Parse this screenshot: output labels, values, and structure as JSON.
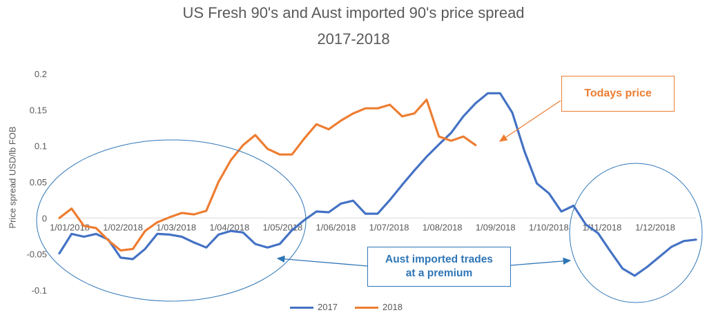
{
  "title": {
    "line1": "US Fresh 90's and Aust imported 90's price spread",
    "line2": "2017-2018"
  },
  "chart_data": {
    "type": "line",
    "title": "US Fresh 90's and Aust imported 90's price spread 2017-2018",
    "xlabel": "",
    "ylabel": "Price spread USD/lb FOB",
    "ylim": [
      -0.1,
      0.2
    ],
    "yticks": [
      -0.1,
      -0.05,
      0,
      0.05,
      0.1,
      0.15,
      0.2
    ],
    "ytick_labels": [
      "-0.1",
      "-0.05",
      "0",
      "0.05",
      "0.1",
      "0.15",
      "0.2"
    ],
    "xtick_labels": [
      "1/01/2018",
      "1/02/2018",
      "1/03/2018",
      "1/04/2018",
      "1/05/2018",
      "1/06/2018",
      "1/07/2018",
      "1/08/2018",
      "1/09/2018",
      "1/10/2018",
      "1/11/2018",
      "1/12/2018"
    ],
    "grid": false,
    "legend_position": "bottom",
    "series": [
      {
        "name": "2017",
        "color": "#4472C4",
        "values": [
          -0.049,
          -0.022,
          -0.026,
          -0.022,
          -0.03,
          -0.055,
          -0.057,
          -0.043,
          -0.022,
          -0.023,
          -0.026,
          -0.034,
          -0.041,
          -0.023,
          -0.018,
          -0.02,
          -0.036,
          -0.041,
          -0.036,
          -0.017,
          -0.003,
          0.009,
          0.008,
          0.02,
          0.024,
          0.006,
          0.006,
          0.025,
          0.046,
          0.066,
          0.085,
          0.102,
          0.118,
          0.141,
          0.159,
          0.173,
          0.173,
          0.146,
          0.092,
          0.048,
          0.034,
          0.009,
          0.017,
          -0.009,
          -0.021,
          -0.046,
          -0.07,
          -0.08,
          -0.068,
          -0.054,
          -0.04,
          -0.032,
          -0.03
        ]
      },
      {
        "name": "2018",
        "color": "#ED7D31",
        "values": [
          0.0,
          0.013,
          -0.011,
          -0.014,
          -0.031,
          -0.045,
          -0.043,
          -0.018,
          -0.006,
          0.001,
          0.007,
          0.005,
          0.01,
          0.05,
          0.08,
          0.101,
          0.115,
          0.096,
          0.088,
          0.088,
          0.11,
          0.13,
          0.123,
          0.135,
          0.145,
          0.152,
          0.152,
          0.157,
          0.141,
          0.145,
          0.164,
          0.113,
          0.107,
          0.113,
          0.101
        ]
      }
    ],
    "annotations": [
      "Todays price",
      "Aust imported trades at a premium"
    ]
  },
  "callouts": {
    "today": "Todays price",
    "premium_line1": "Aust imported trades",
    "premium_line2": "at a premium"
  },
  "colors": {
    "series_2017": "#4472C4",
    "series_2018": "#ED7D31",
    "callout_today": "#ED7D31",
    "callout_premium": "#2E75B6",
    "text": "#595959"
  }
}
